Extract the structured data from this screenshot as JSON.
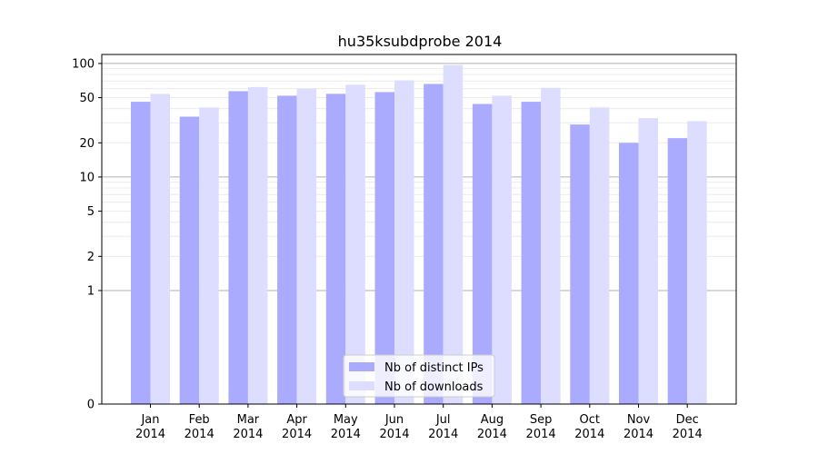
{
  "chart_data": {
    "type": "bar",
    "title": "hu35ksubdprobe 2014",
    "xlabel": "",
    "ylabel": "",
    "scale": "symlog",
    "grid": true,
    "legend_position": "bottom-center",
    "categories": [
      [
        "Jan",
        "2014"
      ],
      [
        "Feb",
        "2014"
      ],
      [
        "Mar",
        "2014"
      ],
      [
        "Apr",
        "2014"
      ],
      [
        "May",
        "2014"
      ],
      [
        "Jun",
        "2014"
      ],
      [
        "Jul",
        "2014"
      ],
      [
        "Aug",
        "2014"
      ],
      [
        "Sep",
        "2014"
      ],
      [
        "Oct",
        "2014"
      ],
      [
        "Nov",
        "2014"
      ],
      [
        "Dec",
        "2014"
      ]
    ],
    "yticks": [
      0,
      1,
      2,
      5,
      10,
      20,
      50,
      100
    ],
    "ylim": [
      0,
      120
    ],
    "series": [
      {
        "name": "Nb of distinct IPs",
        "color": "#aaaaff",
        "values": [
          46,
          34,
          57,
          52,
          54,
          56,
          66,
          44,
          46,
          29,
          20,
          22
        ]
      },
      {
        "name": "Nb of downloads",
        "color": "#ddddff",
        "values": [
          54,
          41,
          62,
          60,
          65,
          71,
          97,
          52,
          61,
          41,
          33,
          31
        ]
      }
    ]
  }
}
